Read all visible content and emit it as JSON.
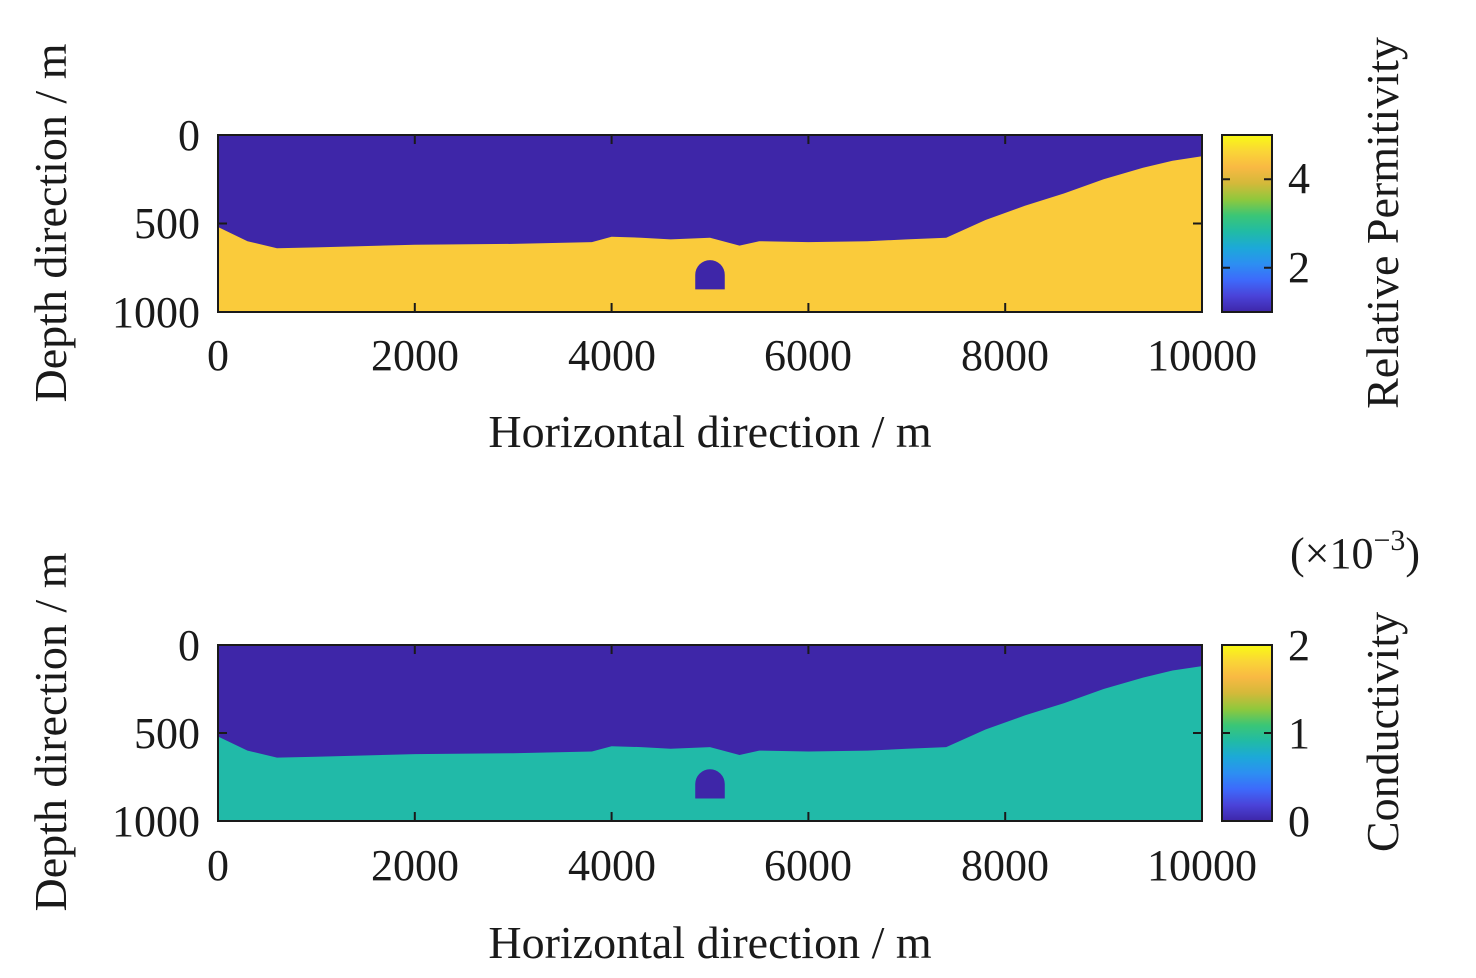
{
  "chart_data": [
    {
      "type": "heatmap",
      "title": "",
      "xlabel": "Horizontal direction / m",
      "ylabel": "Depth direction / m",
      "xlim": [
        0,
        10000
      ],
      "ylim": [
        0,
        1000
      ],
      "y_reversed": true,
      "xticks": [
        0,
        2000,
        4000,
        6000,
        8000,
        10000
      ],
      "xtick_labels": [
        "0",
        "2000",
        "4000",
        "6000",
        "8000",
        "10000"
      ],
      "yticks": [
        0,
        500,
        1000
      ],
      "ytick_labels": [
        "0",
        "500",
        "1000"
      ],
      "grid": false,
      "regions": [
        {
          "name": "",
          "value": 1
        },
        {
          "name": "",
          "value": 4.5
        }
      ],
      "interface_depth": {
        "x": [
          0,
          300,
          600,
          1000,
          2000,
          3000,
          3800,
          4000,
          4300,
          4600,
          5000,
          5200,
          5300,
          5500,
          6000,
          6600,
          7000,
          7400,
          7800,
          8200,
          8600,
          9000,
          9400,
          9700,
          10000
        ],
        "depth": [
          520,
          600,
          640,
          635,
          620,
          615,
          605,
          575,
          580,
          590,
          580,
          610,
          625,
          600,
          605,
          600,
          590,
          580,
          480,
          400,
          330,
          250,
          185,
          145,
          120
        ]
      },
      "cavity": {
        "x_center": 5000,
        "depth_center": 790,
        "radius": 150
      },
      "colorbar": {
        "label": "Relative Permitivity",
        "min": 1,
        "max": 5,
        "ticks": [
          2,
          4
        ],
        "tick_labels": [
          "2",
          "4"
        ],
        "exponent_label": ""
      }
    },
    {
      "type": "heatmap",
      "title": "",
      "xlabel": "Horizontal direction / m",
      "ylabel": "Depth direction / m",
      "xlim": [
        0,
        10000
      ],
      "ylim": [
        0,
        1000
      ],
      "y_reversed": true,
      "xticks": [
        0,
        2000,
        4000,
        6000,
        8000,
        10000
      ],
      "xtick_labels": [
        "0",
        "2000",
        "4000",
        "6000",
        "8000",
        "10000"
      ],
      "yticks": [
        0,
        500,
        1000
      ],
      "ytick_labels": [
        "0",
        "500",
        "1000"
      ],
      "grid": false,
      "regions": [
        {
          "name": "",
          "value": 0
        },
        {
          "name": "",
          "value": 0.9
        }
      ],
      "interface_depth": {
        "x": [
          0,
          300,
          600,
          1000,
          2000,
          3000,
          3800,
          4000,
          4300,
          4600,
          5000,
          5200,
          5300,
          5500,
          6000,
          6600,
          7000,
          7400,
          7800,
          8200,
          8600,
          9000,
          9400,
          9700,
          10000
        ],
        "depth": [
          520,
          600,
          640,
          635,
          620,
          615,
          605,
          575,
          580,
          590,
          580,
          610,
          625,
          600,
          605,
          600,
          590,
          580,
          480,
          400,
          330,
          250,
          185,
          145,
          120
        ]
      },
      "cavity": {
        "x_center": 5000,
        "depth_center": 790,
        "radius": 150
      },
      "colorbar": {
        "label": "Conductivity",
        "min": 0,
        "max": 2,
        "ticks": [
          0,
          1,
          2
        ],
        "tick_labels": [
          "0",
          "1",
          "2"
        ],
        "exponent_label": "(×10",
        "exponent_power": "−3",
        "exponent_close": ")"
      }
    }
  ],
  "colormap": {
    "name": "parula",
    "stops": [
      "#3e26a8",
      "#4a43d9",
      "#3d6afb",
      "#2c8ff2",
      "#1ca9d8",
      "#21bba5",
      "#3bc676",
      "#90c83c",
      "#d4b93a",
      "#f9b943",
      "#fad636",
      "#f9fa14"
    ]
  }
}
